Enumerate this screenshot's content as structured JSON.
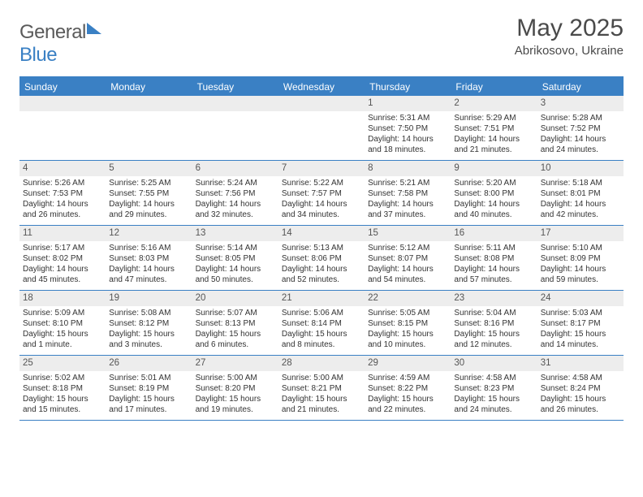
{
  "brand": {
    "part1": "General",
    "part2": "Blue"
  },
  "title": "May 2025",
  "location": "Abrikosovo, Ukraine",
  "colors": {
    "brand_blue": "#3a80c4",
    "brand_gray": "#5a5a5a",
    "header_bg": "#3a80c4",
    "daynum_bg": "#ededed",
    "text": "#333333",
    "background": "#ffffff"
  },
  "daysOfWeek": [
    "Sunday",
    "Monday",
    "Tuesday",
    "Wednesday",
    "Thursday",
    "Friday",
    "Saturday"
  ],
  "weeks": [
    [
      {
        "n": "",
        "sr": "",
        "ss": "",
        "dl": ""
      },
      {
        "n": "",
        "sr": "",
        "ss": "",
        "dl": ""
      },
      {
        "n": "",
        "sr": "",
        "ss": "",
        "dl": ""
      },
      {
        "n": "",
        "sr": "",
        "ss": "",
        "dl": ""
      },
      {
        "n": "1",
        "sr": "Sunrise: 5:31 AM",
        "ss": "Sunset: 7:50 PM",
        "dl": "Daylight: 14 hours and 18 minutes."
      },
      {
        "n": "2",
        "sr": "Sunrise: 5:29 AM",
        "ss": "Sunset: 7:51 PM",
        "dl": "Daylight: 14 hours and 21 minutes."
      },
      {
        "n": "3",
        "sr": "Sunrise: 5:28 AM",
        "ss": "Sunset: 7:52 PM",
        "dl": "Daylight: 14 hours and 24 minutes."
      }
    ],
    [
      {
        "n": "4",
        "sr": "Sunrise: 5:26 AM",
        "ss": "Sunset: 7:53 PM",
        "dl": "Daylight: 14 hours and 26 minutes."
      },
      {
        "n": "5",
        "sr": "Sunrise: 5:25 AM",
        "ss": "Sunset: 7:55 PM",
        "dl": "Daylight: 14 hours and 29 minutes."
      },
      {
        "n": "6",
        "sr": "Sunrise: 5:24 AM",
        "ss": "Sunset: 7:56 PM",
        "dl": "Daylight: 14 hours and 32 minutes."
      },
      {
        "n": "7",
        "sr": "Sunrise: 5:22 AM",
        "ss": "Sunset: 7:57 PM",
        "dl": "Daylight: 14 hours and 34 minutes."
      },
      {
        "n": "8",
        "sr": "Sunrise: 5:21 AM",
        "ss": "Sunset: 7:58 PM",
        "dl": "Daylight: 14 hours and 37 minutes."
      },
      {
        "n": "9",
        "sr": "Sunrise: 5:20 AM",
        "ss": "Sunset: 8:00 PM",
        "dl": "Daylight: 14 hours and 40 minutes."
      },
      {
        "n": "10",
        "sr": "Sunrise: 5:18 AM",
        "ss": "Sunset: 8:01 PM",
        "dl": "Daylight: 14 hours and 42 minutes."
      }
    ],
    [
      {
        "n": "11",
        "sr": "Sunrise: 5:17 AM",
        "ss": "Sunset: 8:02 PM",
        "dl": "Daylight: 14 hours and 45 minutes."
      },
      {
        "n": "12",
        "sr": "Sunrise: 5:16 AM",
        "ss": "Sunset: 8:03 PM",
        "dl": "Daylight: 14 hours and 47 minutes."
      },
      {
        "n": "13",
        "sr": "Sunrise: 5:14 AM",
        "ss": "Sunset: 8:05 PM",
        "dl": "Daylight: 14 hours and 50 minutes."
      },
      {
        "n": "14",
        "sr": "Sunrise: 5:13 AM",
        "ss": "Sunset: 8:06 PM",
        "dl": "Daylight: 14 hours and 52 minutes."
      },
      {
        "n": "15",
        "sr": "Sunrise: 5:12 AM",
        "ss": "Sunset: 8:07 PM",
        "dl": "Daylight: 14 hours and 54 minutes."
      },
      {
        "n": "16",
        "sr": "Sunrise: 5:11 AM",
        "ss": "Sunset: 8:08 PM",
        "dl": "Daylight: 14 hours and 57 minutes."
      },
      {
        "n": "17",
        "sr": "Sunrise: 5:10 AM",
        "ss": "Sunset: 8:09 PM",
        "dl": "Daylight: 14 hours and 59 minutes."
      }
    ],
    [
      {
        "n": "18",
        "sr": "Sunrise: 5:09 AM",
        "ss": "Sunset: 8:10 PM",
        "dl": "Daylight: 15 hours and 1 minute."
      },
      {
        "n": "19",
        "sr": "Sunrise: 5:08 AM",
        "ss": "Sunset: 8:12 PM",
        "dl": "Daylight: 15 hours and 3 minutes."
      },
      {
        "n": "20",
        "sr": "Sunrise: 5:07 AM",
        "ss": "Sunset: 8:13 PM",
        "dl": "Daylight: 15 hours and 6 minutes."
      },
      {
        "n": "21",
        "sr": "Sunrise: 5:06 AM",
        "ss": "Sunset: 8:14 PM",
        "dl": "Daylight: 15 hours and 8 minutes."
      },
      {
        "n": "22",
        "sr": "Sunrise: 5:05 AM",
        "ss": "Sunset: 8:15 PM",
        "dl": "Daylight: 15 hours and 10 minutes."
      },
      {
        "n": "23",
        "sr": "Sunrise: 5:04 AM",
        "ss": "Sunset: 8:16 PM",
        "dl": "Daylight: 15 hours and 12 minutes."
      },
      {
        "n": "24",
        "sr": "Sunrise: 5:03 AM",
        "ss": "Sunset: 8:17 PM",
        "dl": "Daylight: 15 hours and 14 minutes."
      }
    ],
    [
      {
        "n": "25",
        "sr": "Sunrise: 5:02 AM",
        "ss": "Sunset: 8:18 PM",
        "dl": "Daylight: 15 hours and 15 minutes."
      },
      {
        "n": "26",
        "sr": "Sunrise: 5:01 AM",
        "ss": "Sunset: 8:19 PM",
        "dl": "Daylight: 15 hours and 17 minutes."
      },
      {
        "n": "27",
        "sr": "Sunrise: 5:00 AM",
        "ss": "Sunset: 8:20 PM",
        "dl": "Daylight: 15 hours and 19 minutes."
      },
      {
        "n": "28",
        "sr": "Sunrise: 5:00 AM",
        "ss": "Sunset: 8:21 PM",
        "dl": "Daylight: 15 hours and 21 minutes."
      },
      {
        "n": "29",
        "sr": "Sunrise: 4:59 AM",
        "ss": "Sunset: 8:22 PM",
        "dl": "Daylight: 15 hours and 22 minutes."
      },
      {
        "n": "30",
        "sr": "Sunrise: 4:58 AM",
        "ss": "Sunset: 8:23 PM",
        "dl": "Daylight: 15 hours and 24 minutes."
      },
      {
        "n": "31",
        "sr": "Sunrise: 4:58 AM",
        "ss": "Sunset: 8:24 PM",
        "dl": "Daylight: 15 hours and 26 minutes."
      }
    ]
  ]
}
